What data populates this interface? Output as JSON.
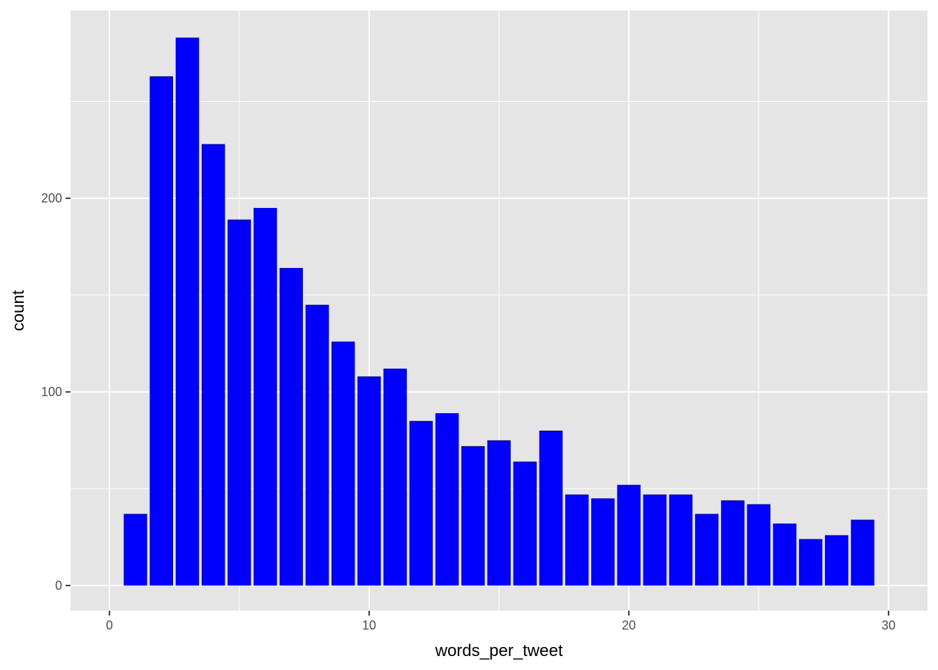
{
  "chart_data": {
    "type": "bar",
    "xlabel": "words_per_tweet",
    "ylabel": "count",
    "x": [
      1,
      2,
      3,
      4,
      5,
      6,
      7,
      8,
      9,
      10,
      11,
      12,
      13,
      14,
      15,
      16,
      17,
      18,
      19,
      20,
      21,
      22,
      23,
      24,
      25,
      26,
      27,
      28,
      29
    ],
    "values": [
      37,
      263,
      283,
      228,
      189,
      195,
      164,
      145,
      126,
      108,
      112,
      85,
      89,
      72,
      75,
      64,
      80,
      47,
      45,
      52,
      47,
      47,
      37,
      44,
      42,
      32,
      24,
      26,
      34
    ],
    "xlim": [
      -1.5,
      31.5
    ],
    "ylim": [
      -13,
      297
    ],
    "x_ticks": [
      0,
      10,
      20,
      30
    ],
    "x_tick_labels": [
      "0",
      "10",
      "20",
      "30"
    ],
    "y_ticks": [
      0,
      100,
      200
    ],
    "y_tick_labels": [
      "0",
      "100",
      "200"
    ],
    "bar_color": "#0000ff",
    "panel_color": "#e5e5e5",
    "grid": true
  }
}
